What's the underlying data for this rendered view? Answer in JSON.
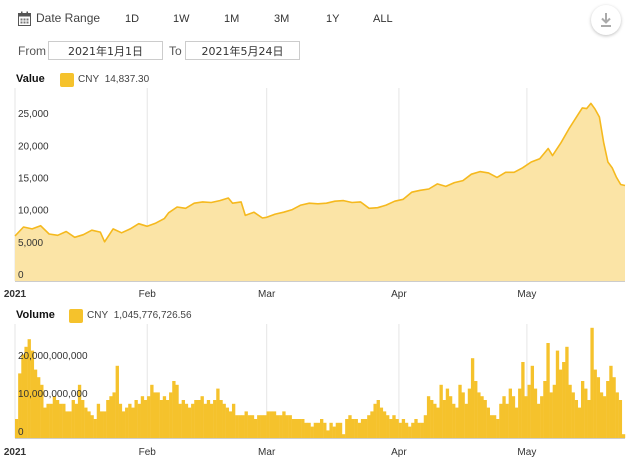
{
  "toolbar": {
    "range_label": "Date Range",
    "ranges": [
      "1D",
      "1W",
      "1M",
      "3M",
      "1Y",
      "ALL"
    ],
    "calendar_icon": "calendar-icon",
    "download_icon": "download-icon"
  },
  "date_range": {
    "from_label": "From",
    "from_value": "2021年1月1日",
    "to_label": "To",
    "to_value": "2021年5月24日"
  },
  "colors": {
    "fill": "#fbe4a6",
    "line": "#f5b91e",
    "bar": "#f5c22c"
  },
  "chart_data": [
    {
      "type": "area",
      "legend_label": "Value",
      "series": [
        {
          "name": "CNY",
          "current_label": "14,837.30"
        }
      ],
      "ylim": [
        0,
        30000
      ],
      "yticks": [
        0,
        5000,
        10000,
        15000,
        20000,
        25000
      ],
      "ytick_labels": [
        "0",
        "5,000",
        "10,000",
        "15,000",
        "20,000",
        "25,000"
      ],
      "x_start": "2021-01-01",
      "x_end": "2021-05-24",
      "xticks": [
        {
          "date": "2021-01-01",
          "label": "2021",
          "bold": true
        },
        {
          "date": "2021-02-01",
          "label": "Feb",
          "bold": false
        },
        {
          "date": "2021-03-01",
          "label": "Mar",
          "bold": false
        },
        {
          "date": "2021-04-01",
          "label": "Apr",
          "bold": false
        },
        {
          "date": "2021-05-01",
          "label": "May",
          "bold": false
        }
      ],
      "points": [
        [
          "2021-01-01",
          7000
        ],
        [
          "2021-01-03",
          8400
        ],
        [
          "2021-01-05",
          8100
        ],
        [
          "2021-01-07",
          8600
        ],
        [
          "2021-01-09",
          7300
        ],
        [
          "2021-01-11",
          7100
        ],
        [
          "2021-01-13",
          7700
        ],
        [
          "2021-01-15",
          6800
        ],
        [
          "2021-01-17",
          7200
        ],
        [
          "2021-01-19",
          7900
        ],
        [
          "2021-01-21",
          7600
        ],
        [
          "2021-01-22",
          6100
        ],
        [
          "2021-01-24",
          8100
        ],
        [
          "2021-01-26",
          7500
        ],
        [
          "2021-01-28",
          8100
        ],
        [
          "2021-01-30",
          8900
        ],
        [
          "2021-02-01",
          8500
        ],
        [
          "2021-02-03",
          9000
        ],
        [
          "2021-02-05",
          9700
        ],
        [
          "2021-02-06",
          10600
        ],
        [
          "2021-02-08",
          11500
        ],
        [
          "2021-02-10",
          11300
        ],
        [
          "2021-02-12",
          12100
        ],
        [
          "2021-02-14",
          12300
        ],
        [
          "2021-02-16",
          12200
        ],
        [
          "2021-02-18",
          12500
        ],
        [
          "2021-02-20",
          12900
        ],
        [
          "2021-02-21",
          12100
        ],
        [
          "2021-02-23",
          12300
        ],
        [
          "2021-02-24",
          10200
        ],
        [
          "2021-02-26",
          10700
        ],
        [
          "2021-02-28",
          9800
        ],
        [
          "2021-03-01",
          9900
        ],
        [
          "2021-03-03",
          10400
        ],
        [
          "2021-03-05",
          10700
        ],
        [
          "2021-03-07",
          11100
        ],
        [
          "2021-03-09",
          11800
        ],
        [
          "2021-03-11",
          12100
        ],
        [
          "2021-03-13",
          12000
        ],
        [
          "2021-03-15",
          12100
        ],
        [
          "2021-03-17",
          12400
        ],
        [
          "2021-03-19",
          12500
        ],
        [
          "2021-03-21",
          12200
        ],
        [
          "2021-03-23",
          12300
        ],
        [
          "2021-03-25",
          11300
        ],
        [
          "2021-03-27",
          11400
        ],
        [
          "2021-03-29",
          11800
        ],
        [
          "2021-03-31",
          12400
        ],
        [
          "2021-04-02",
          12700
        ],
        [
          "2021-04-04",
          13800
        ],
        [
          "2021-04-06",
          14100
        ],
        [
          "2021-04-08",
          14300
        ],
        [
          "2021-04-10",
          15100
        ],
        [
          "2021-04-12",
          14700
        ],
        [
          "2021-04-14",
          15300
        ],
        [
          "2021-04-16",
          15600
        ],
        [
          "2021-04-18",
          16600
        ],
        [
          "2021-04-20",
          17000
        ],
        [
          "2021-04-22",
          16800
        ],
        [
          "2021-04-24",
          16100
        ],
        [
          "2021-04-26",
          16900
        ],
        [
          "2021-04-28",
          16900
        ],
        [
          "2021-04-30",
          17600
        ],
        [
          "2021-05-02",
          18500
        ],
        [
          "2021-05-04",
          19000
        ],
        [
          "2021-05-06",
          20600
        ],
        [
          "2021-05-07",
          19500
        ],
        [
          "2021-05-09",
          21500
        ],
        [
          "2021-05-11",
          23800
        ],
        [
          "2021-05-13",
          25900
        ],
        [
          "2021-05-14",
          26900
        ],
        [
          "2021-05-15",
          26800
        ],
        [
          "2021-05-16",
          27600
        ],
        [
          "2021-05-17",
          26700
        ],
        [
          "2021-05-18",
          25500
        ],
        [
          "2021-05-19",
          21500
        ],
        [
          "2021-05-20",
          18500
        ],
        [
          "2021-05-21",
          17600
        ],
        [
          "2021-05-22",
          16100
        ],
        [
          "2021-05-23",
          15000
        ],
        [
          "2021-05-24",
          14837
        ]
      ]
    },
    {
      "type": "bar",
      "legend_label": "Volume",
      "series": [
        {
          "name": "CNY",
          "current_label": "1,045,776,726.56"
        }
      ],
      "ylim": [
        0,
        30000000000
      ],
      "yticks": [
        0,
        10000000000,
        20000000000
      ],
      "ytick_labels": [
        "0",
        "10,000,000,000",
        "20,000,000,000"
      ],
      "x_start": "2021-01-01",
      "x_end": "2021-05-24",
      "xticks": [
        {
          "date": "2021-01-01",
          "label": "2021",
          "bold": true
        },
        {
          "date": "2021-02-01",
          "label": "Feb",
          "bold": false
        },
        {
          "date": "2021-03-01",
          "label": "Mar",
          "bold": false
        },
        {
          "date": "2021-04-01",
          "label": "Apr",
          "bold": false
        },
        {
          "date": "2021-05-01",
          "label": "May",
          "bold": false
        }
      ],
      "values": [
        5000000000,
        17000000000,
        22000000000,
        24000000000,
        26000000000,
        23000000000,
        18000000000,
        16000000000,
        14000000000,
        8000000000,
        9000000000,
        9000000000,
        11000000000,
        10000000000,
        9000000000,
        9000000000,
        7000000000,
        7000000000,
        10000000000,
        9000000000,
        14000000000,
        10000000000,
        8000000000,
        7000000000,
        6000000000,
        5000000000,
        9000000000,
        7000000000,
        7000000000,
        10000000000,
        11000000000,
        12000000000,
        19000000000,
        9000000000,
        7000000000,
        8000000000,
        9000000000,
        8000000000,
        10000000000,
        9000000000,
        11000000000,
        10000000000,
        11000000000,
        14000000000,
        12000000000,
        12000000000,
        10000000000,
        11000000000,
        10000000000,
        12000000000,
        15000000000,
        14000000000,
        9000000000,
        10000000000,
        9000000000,
        8000000000,
        9000000000,
        10000000000,
        10000000000,
        11000000000,
        9000000000,
        10000000000,
        9000000000,
        10000000000,
        13000000000,
        10000000000,
        9000000000,
        8000000000,
        7000000000,
        9000000000,
        6000000000,
        6000000000,
        6000000000,
        7000000000,
        6000000000,
        6000000000,
        5000000000,
        6000000000,
        6000000000,
        6000000000,
        7000000000,
        7000000000,
        7000000000,
        6000000000,
        6000000000,
        7000000000,
        6000000000,
        6000000000,
        5000000000,
        5000000000,
        5000000000,
        5000000000,
        4000000000,
        4000000000,
        3000000000,
        4000000000,
        4000000000,
        5000000000,
        4000000000,
        2000000000,
        4000000000,
        3000000000,
        4000000000,
        4000000000,
        1000000000,
        5000000000,
        6000000000,
        5000000000,
        5000000000,
        4000000000,
        5000000000,
        5000000000,
        6000000000,
        7000000000,
        9000000000,
        10000000000,
        8000000000,
        7000000000,
        6000000000,
        5000000000,
        6000000000,
        5000000000,
        4000000000,
        5000000000,
        4000000000,
        3000000000,
        4000000000,
        5000000000,
        4000000000,
        4000000000,
        6000000000,
        11000000000,
        10000000000,
        9000000000,
        8000000000,
        14000000000,
        10000000000,
        13000000000,
        11000000000,
        9000000000,
        8000000000,
        14000000000,
        12000000000,
        9000000000,
        13000000000,
        21000000000,
        15000000000,
        12000000000,
        11000000000,
        10000000000,
        8000000000,
        6000000000,
        6000000000,
        5000000000,
        9000000000,
        11000000000,
        9000000000,
        13000000000,
        11000000000,
        8000000000,
        13000000000,
        20000000000,
        11000000000,
        14000000000,
        19000000000,
        13000000000,
        9000000000,
        11000000000,
        15000000000,
        25000000000,
        12000000000,
        14000000000,
        23000000000,
        18000000000,
        20000000000,
        24000000000,
        14000000000,
        12000000000,
        10000000000,
        8000000000,
        15000000000,
        13000000000,
        10000000000,
        29000000000,
        18000000000,
        16000000000,
        12000000000,
        11000000000,
        15000000000,
        19000000000,
        16000000000,
        12000000000,
        10000000000,
        1000000000
      ]
    }
  ]
}
